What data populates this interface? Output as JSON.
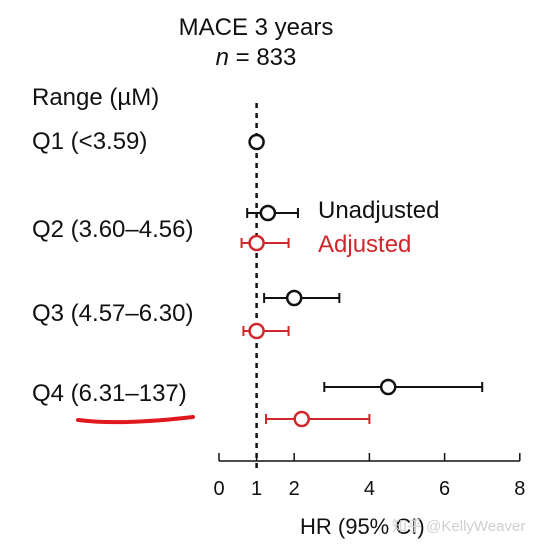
{
  "chart_data": {
    "type": "forest",
    "title": "MACE 3 years",
    "subtitle_n_symbol": "n",
    "subtitle_n_value": "= 833",
    "ylabel": "Range (µM)",
    "xlabel": "HR (95% CI)",
    "xlim": [
      0,
      8
    ],
    "xticks": [
      0,
      1,
      2,
      4,
      6,
      8
    ],
    "reference_line": 1,
    "categories": [
      "Q1 (<3.59)",
      "Q2 (3.60–4.56)",
      "Q3 (4.57–6.30)",
      "Q4 (6.31–137)"
    ],
    "series": [
      {
        "name": "Unadjusted",
        "color": "#111111",
        "points": [
          {
            "category": "Q1 (<3.59)",
            "hr": 1.0,
            "lo": null,
            "hi": null
          },
          {
            "category": "Q2 (3.60–4.56)",
            "hr": 1.3,
            "lo": 0.75,
            "hi": 2.1
          },
          {
            "category": "Q3 (4.57–6.30)",
            "hr": 2.0,
            "lo": 1.2,
            "hi": 3.2
          },
          {
            "category": "Q4 (6.31–137)",
            "hr": 4.5,
            "lo": 2.8,
            "hi": 7.0
          }
        ]
      },
      {
        "name": "Adjusted",
        "color": "#d0272c",
        "points": [
          {
            "category": "Q2 (3.60–4.56)",
            "hr": 1.0,
            "lo": 0.6,
            "hi": 1.85
          },
          {
            "category": "Q3 (4.57–6.30)",
            "hr": 1.0,
            "lo": 0.65,
            "hi": 1.85
          },
          {
            "category": "Q4 (6.31–137)",
            "hr": 2.2,
            "lo": 1.25,
            "hi": 4.0
          }
        ]
      }
    ],
    "annotations": {
      "underline_category": "Q4 (6.31–137)",
      "underline_color": "#e0191e"
    },
    "watermark": "知乎 @KellyWeaver"
  }
}
